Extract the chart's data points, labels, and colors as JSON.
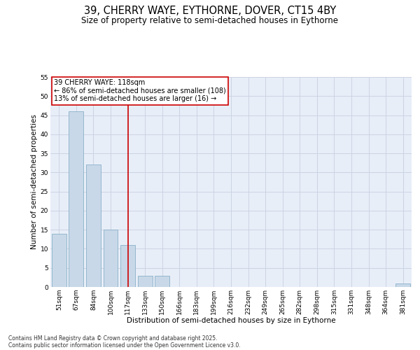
{
  "title_line1": "39, CHERRY WAYE, EYTHORNE, DOVER, CT15 4BY",
  "title_line2": "Size of property relative to semi-detached houses in Eythorne",
  "xlabel": "Distribution of semi-detached houses by size in Eythorne",
  "ylabel": "Number of semi-detached properties",
  "categories": [
    "51sqm",
    "67sqm",
    "84sqm",
    "100sqm",
    "117sqm",
    "133sqm",
    "150sqm",
    "166sqm",
    "183sqm",
    "199sqm",
    "216sqm",
    "232sqm",
    "249sqm",
    "265sqm",
    "282sqm",
    "298sqm",
    "315sqm",
    "331sqm",
    "348sqm",
    "364sqm",
    "381sqm"
  ],
  "values": [
    14,
    46,
    32,
    15,
    11,
    3,
    3,
    0,
    0,
    0,
    0,
    0,
    0,
    0,
    0,
    0,
    0,
    0,
    0,
    0,
    1
  ],
  "bar_color": "#c8d8e8",
  "bar_edge_color": "#7ba7c0",
  "vline_x_index": 4,
  "vline_color": "#cc0000",
  "annotation_line1": "39 CHERRY WAYE: 118sqm",
  "annotation_line2": "← 86% of semi-detached houses are smaller (108)",
  "annotation_line3": "13% of semi-detached houses are larger (16) →",
  "annotation_box_color": "#cc0000",
  "annotation_box_bg": "#ffffff",
  "ylim": [
    0,
    55
  ],
  "yticks": [
    0,
    5,
    10,
    15,
    20,
    25,
    30,
    35,
    40,
    45,
    50,
    55
  ],
  "grid_color": "#c8d0e0",
  "bg_color": "#e8eef8",
  "footer_line1": "Contains HM Land Registry data © Crown copyright and database right 2025.",
  "footer_line2": "Contains public sector information licensed under the Open Government Licence v3.0.",
  "title_fontsize": 10.5,
  "subtitle_fontsize": 8.5,
  "axis_label_fontsize": 7.5,
  "tick_fontsize": 6.5,
  "annotation_fontsize": 7,
  "footer_fontsize": 5.5
}
